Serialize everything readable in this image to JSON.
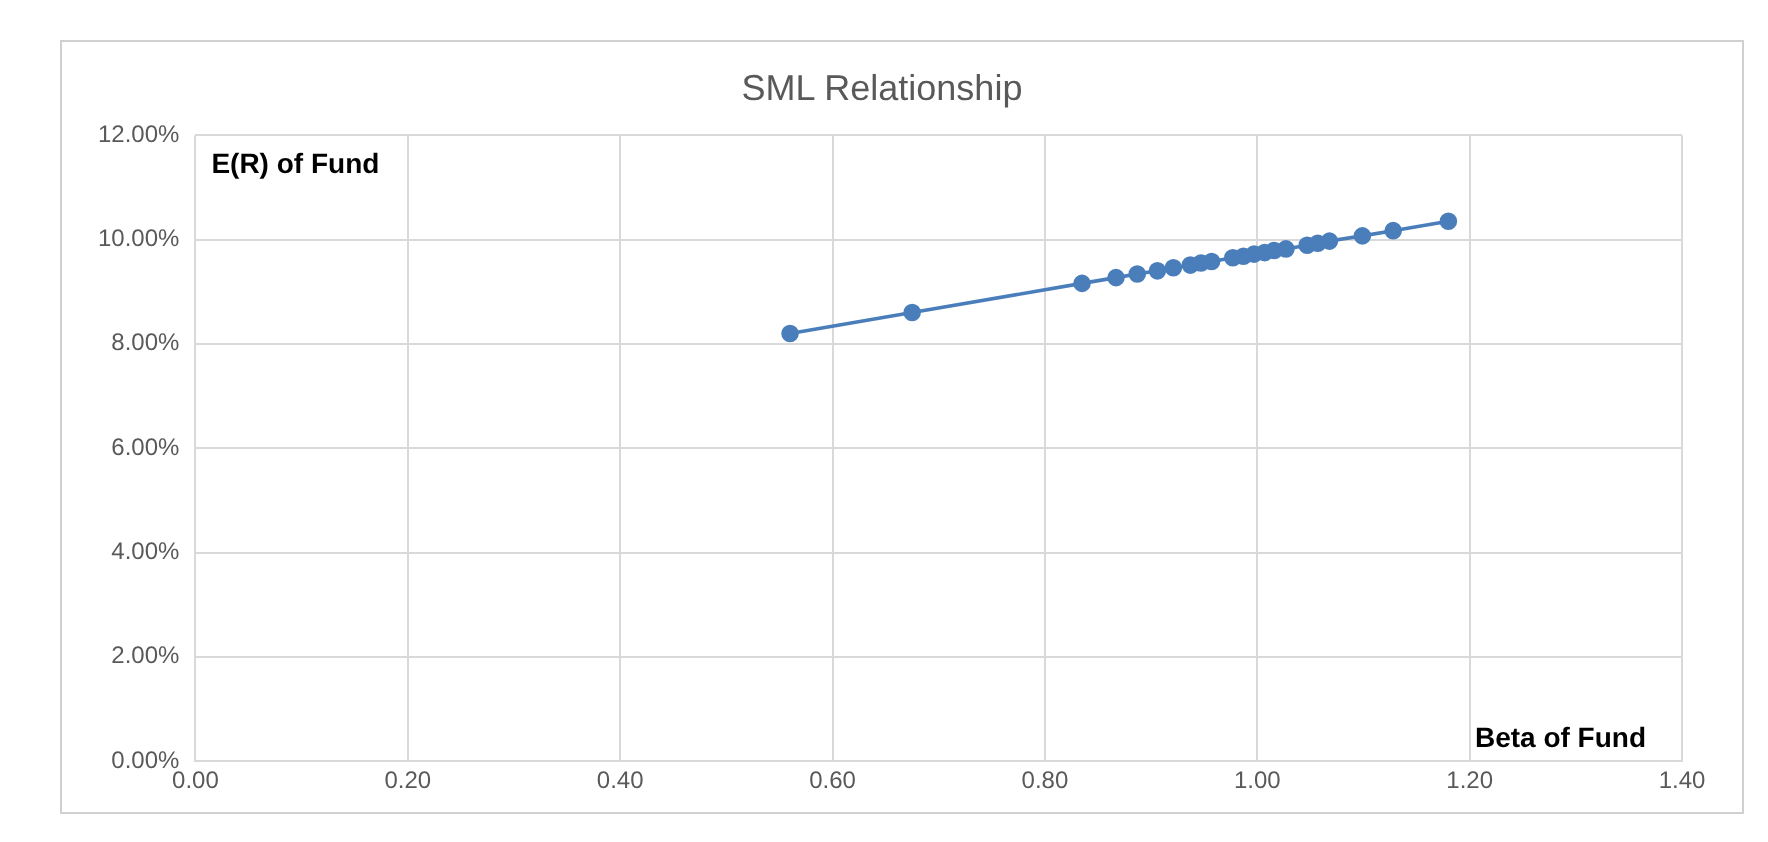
{
  "chart_data": {
    "type": "line",
    "title": "SML Relationship",
    "xlabel": "Beta of Fund",
    "ylabel": "E(R) of Fund",
    "x": [
      0.56,
      0.675,
      0.835,
      0.867,
      0.887,
      0.906,
      0.921,
      0.937,
      0.947,
      0.957,
      0.977,
      0.987,
      0.997,
      1.007,
      1.016,
      1.027,
      1.047,
      1.057,
      1.068,
      1.099,
      1.128,
      1.18
    ],
    "series": [
      {
        "color": "#4a7ebb",
        "values": [
          8.2,
          8.6,
          9.16,
          9.27,
          9.34,
          9.4,
          9.46,
          9.51,
          9.55,
          9.58,
          9.65,
          9.68,
          9.72,
          9.75,
          9.79,
          9.82,
          9.89,
          9.93,
          9.97,
          10.07,
          10.17,
          10.35
        ]
      }
    ],
    "xlim": [
      0,
      1.4
    ],
    "xticks": [
      {
        "value": 0,
        "label": "0.00"
      },
      {
        "value": 0.2,
        "label": "0.20"
      },
      {
        "value": 0.4,
        "label": "0.40"
      },
      {
        "value": 0.6,
        "label": "0.60"
      },
      {
        "value": 0.8,
        "label": "0.80"
      },
      {
        "value": 1,
        "label": "1.00"
      },
      {
        "value": 1.2,
        "label": "1.20"
      },
      {
        "value": 1.4,
        "label": "1.40"
      }
    ],
    "ylim": [
      0,
      12
    ],
    "yticks": [
      {
        "value": 0,
        "label": "0.00%"
      },
      {
        "value": 2,
        "label": "2.00%"
      },
      {
        "value": 4,
        "label": "4.00%"
      },
      {
        "value": 6,
        "label": "6.00%"
      },
      {
        "value": 8,
        "label": "8.00%"
      },
      {
        "value": 10,
        "label": "10.00%"
      },
      {
        "value": 12,
        "label": "12.00%"
      }
    ],
    "grid": true,
    "marker": "circle",
    "line_style": "solid"
  }
}
